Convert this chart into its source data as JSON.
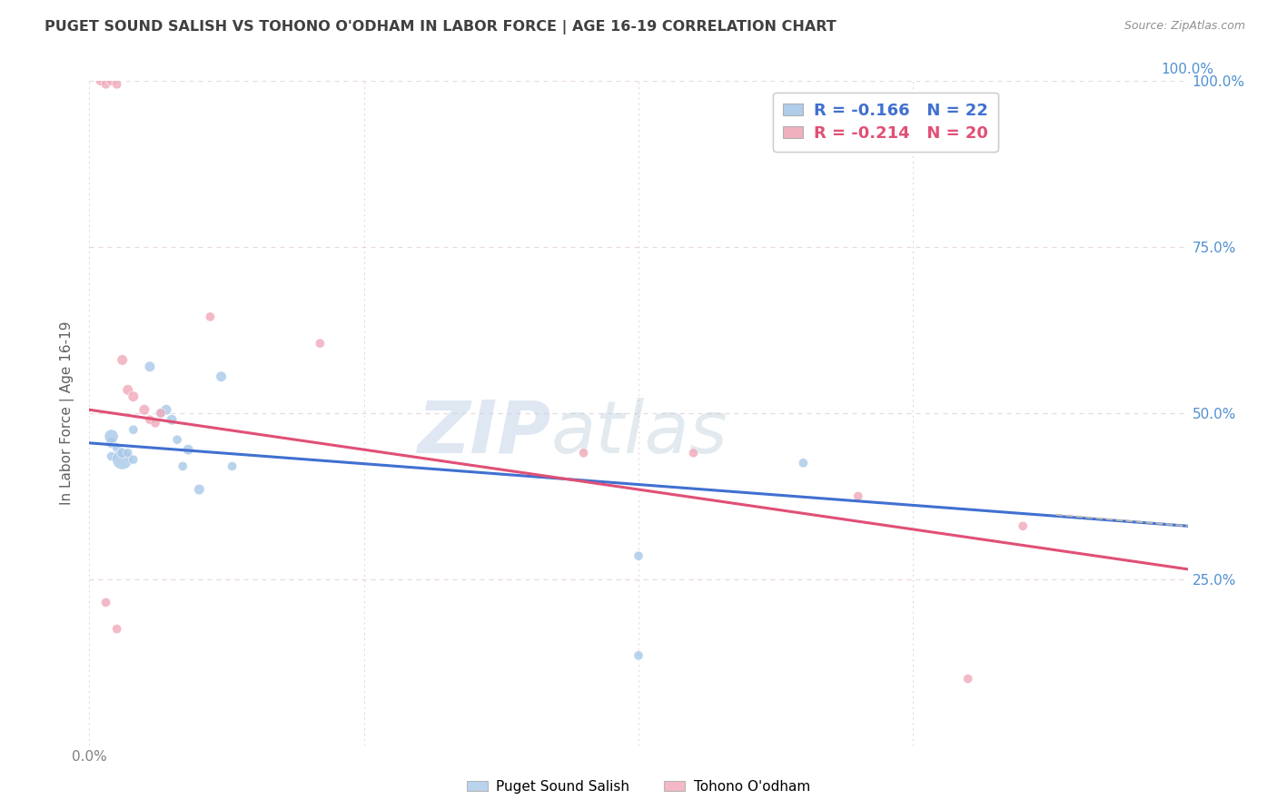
{
  "title": "PUGET SOUND SALISH VS TOHONO O'ODHAM IN LABOR FORCE | AGE 16-19 CORRELATION CHART",
  "source": "Source: ZipAtlas.com",
  "ylabel": "In Labor Force | Age 16-19",
  "xlim": [
    0,
    1.0
  ],
  "ylim": [
    0,
    1.0
  ],
  "blue_color": "#a8c8e8",
  "pink_color": "#f0a8b8",
  "blue_line_color": "#4070d0",
  "pink_line_color": "#e05075",
  "dashed_line_color": "#b8b8b8",
  "legend_blue_label": "R = -0.166   N = 22",
  "legend_pink_label": "R = -0.214   N = 20",
  "legend_bottom_blue": "Puget Sound Salish",
  "legend_bottom_pink": "Tohono O'odham",
  "watermark_zip": "ZIP",
  "watermark_atlas": "atlas",
  "blue_x": [
    0.02,
    0.02,
    0.02,
    0.025,
    0.03,
    0.03,
    0.035,
    0.04,
    0.04,
    0.055,
    0.065,
    0.07,
    0.075,
    0.08,
    0.085,
    0.09,
    0.1,
    0.12,
    0.13,
    0.5,
    0.65,
    0.5
  ],
  "blue_y": [
    0.455,
    0.465,
    0.435,
    0.448,
    0.43,
    0.44,
    0.44,
    0.43,
    0.475,
    0.57,
    0.5,
    0.505,
    0.49,
    0.46,
    0.42,
    0.445,
    0.385,
    0.555,
    0.42,
    0.285,
    0.425,
    0.135
  ],
  "blue_sizes": [
    70,
    120,
    55,
    55,
    250,
    70,
    55,
    55,
    55,
    70,
    70,
    70,
    70,
    55,
    55,
    70,
    70,
    70,
    55,
    55,
    55,
    55
  ],
  "pink_x": [
    0.01,
    0.015,
    0.02,
    0.025,
    0.03,
    0.035,
    0.04,
    0.05,
    0.055,
    0.06,
    0.065,
    0.11,
    0.21,
    0.45,
    0.55,
    0.7,
    0.85,
    0.015,
    0.025,
    0.8
  ],
  "pink_y": [
    1.0,
    0.995,
    1.0,
    0.995,
    0.58,
    0.535,
    0.525,
    0.505,
    0.49,
    0.485,
    0.5,
    0.645,
    0.605,
    0.44,
    0.44,
    0.375,
    0.33,
    0.215,
    0.175,
    0.1
  ],
  "pink_sizes": [
    55,
    55,
    55,
    55,
    70,
    70,
    70,
    70,
    55,
    55,
    55,
    55,
    55,
    55,
    55,
    55,
    55,
    55,
    55,
    55
  ],
  "blue_trend": [
    0.0,
    0.455,
    1.0,
    0.33
  ],
  "pink_trend": [
    0.0,
    0.505,
    1.0,
    0.265
  ],
  "blue_dashed": [
    0.88,
    0.347,
    1.0,
    0.33
  ],
  "grid_color": "#e8d8e0",
  "grid_dotted_color": "#e0d0d8",
  "background_color": "#ffffff",
  "title_color": "#404040",
  "axis_label_color": "#606060",
  "right_tick_color": "#5090d0",
  "bottom_tick_color": "#808080"
}
